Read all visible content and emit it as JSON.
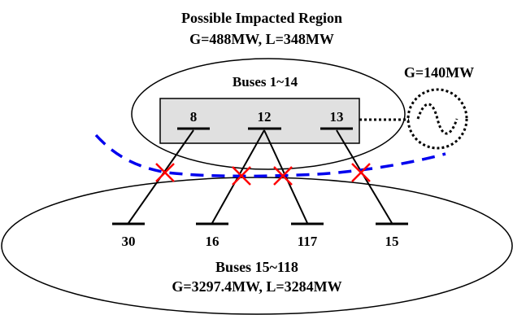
{
  "region_top": {
    "title": "Possible Impacted Region",
    "summary": "G=488MW, L=348MW",
    "inner_label": "Buses 1~14"
  },
  "generator": {
    "label": "G=140MW",
    "icon": "generator-icon"
  },
  "region_bottom": {
    "label": "Buses 15~118",
    "summary": "G=3297.4MW, L=3284MW"
  },
  "top_buses": [
    "8",
    "12",
    "13"
  ],
  "bottom_buses": [
    "30",
    "16",
    "117",
    "15"
  ],
  "connections": [
    {
      "from": "8",
      "to": "30"
    },
    {
      "from": "12",
      "to": "16"
    },
    {
      "from": "12",
      "to": "117"
    },
    {
      "from": "13",
      "to": "15"
    }
  ],
  "colors": {
    "cut_line": "#0000ee",
    "cut_marker": "#ff0000",
    "box_fill": "#e0e0e0",
    "stroke": "#000000"
  }
}
